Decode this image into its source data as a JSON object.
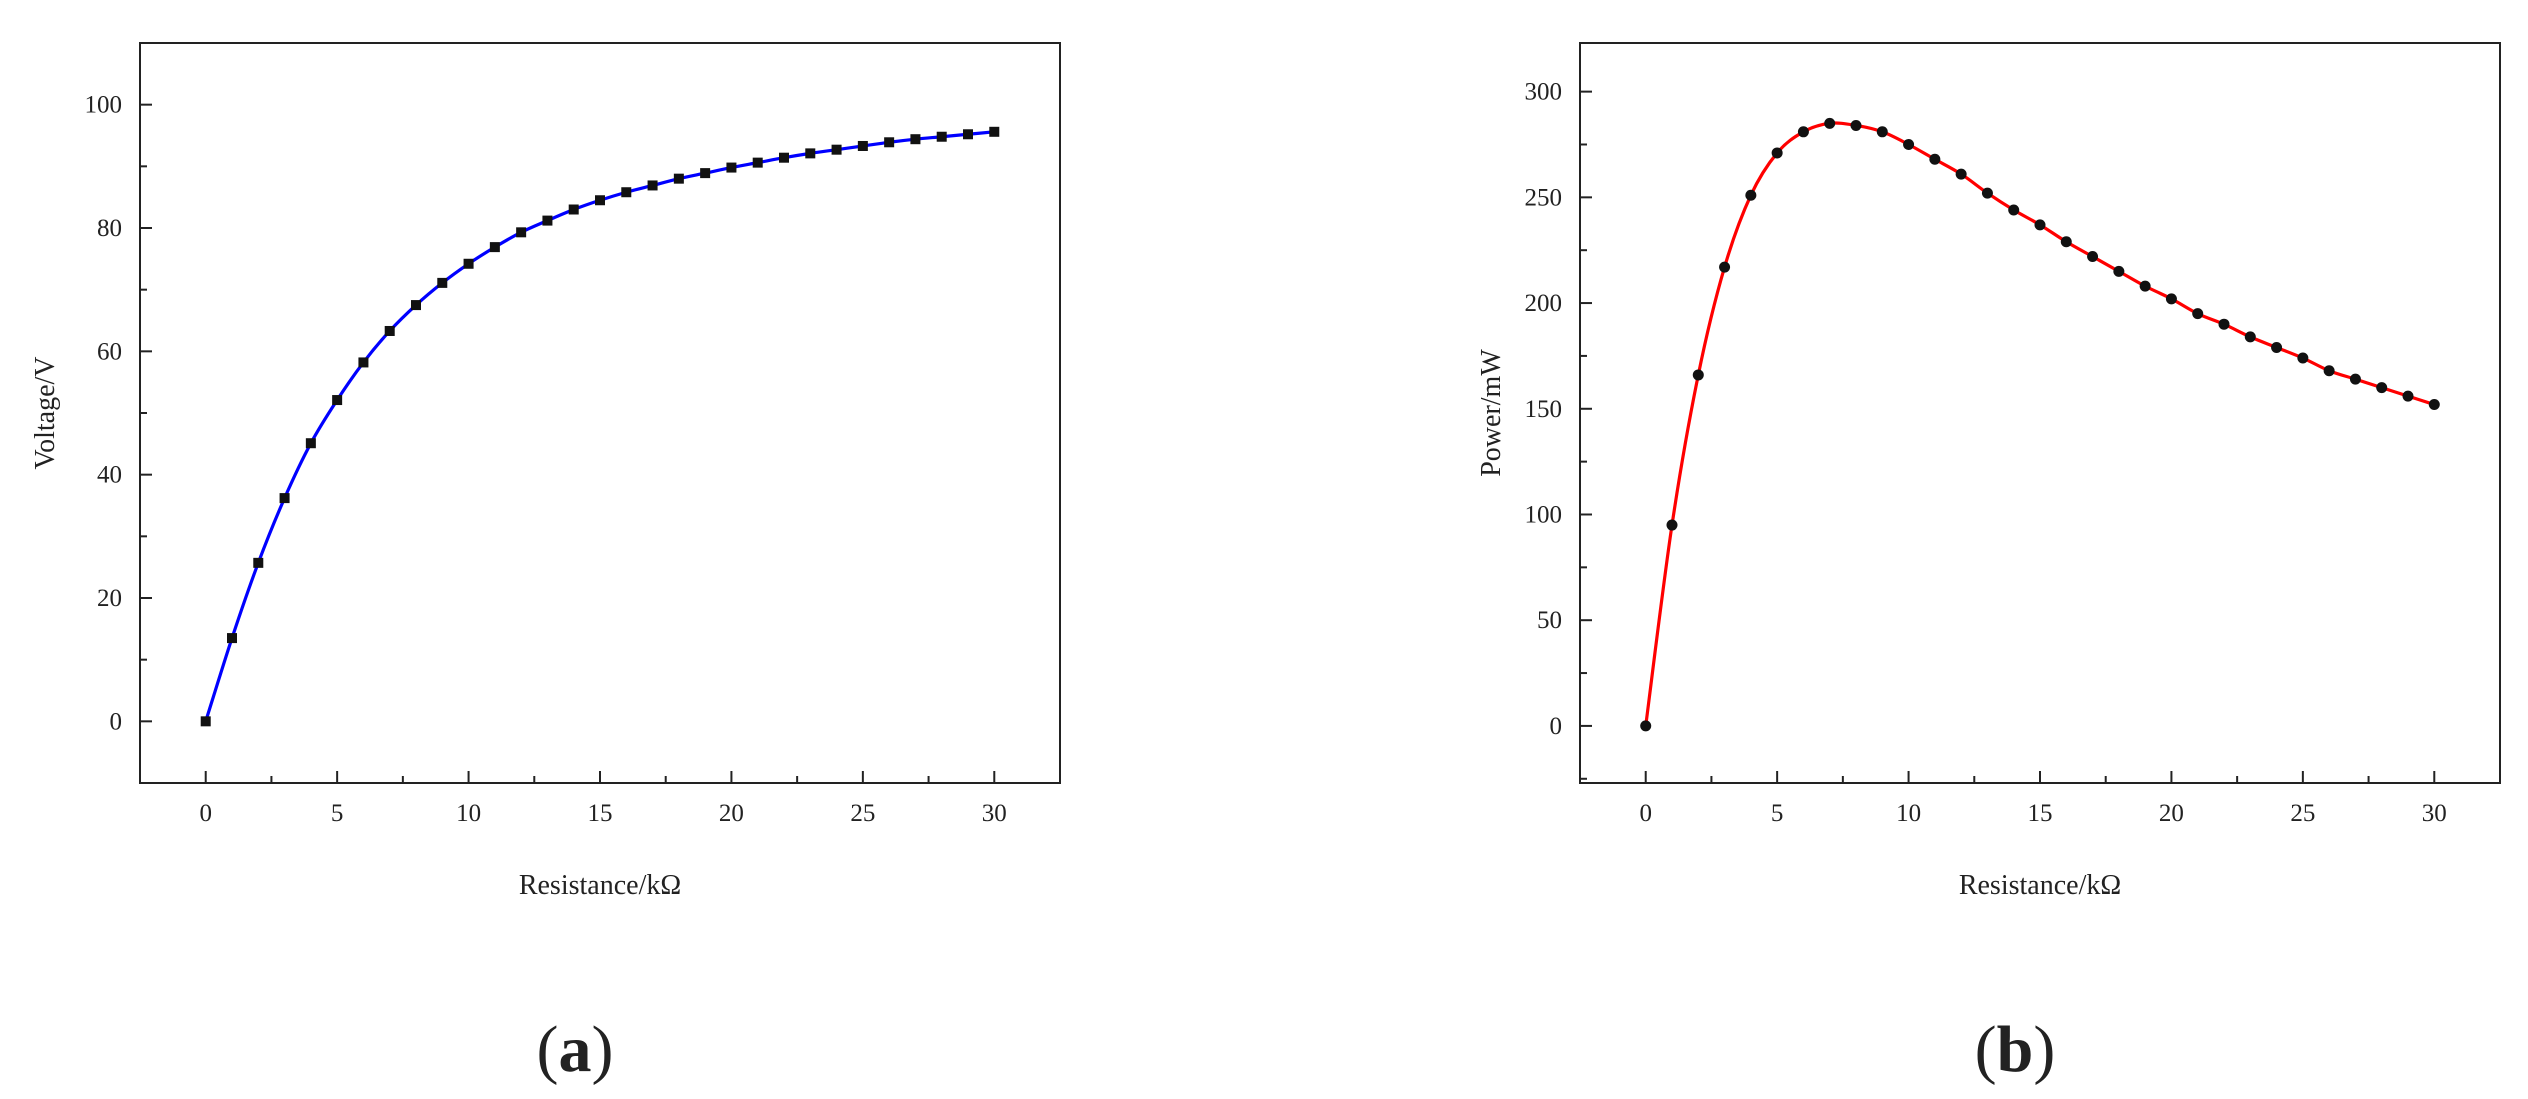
{
  "chart_data": [
    {
      "panel_label": "a",
      "type": "line",
      "xlabel": "Resistance/kΩ",
      "ylabel": "Voltage/V",
      "xlim": [
        -2.5,
        32.5
      ],
      "ylim": [
        -10,
        110
      ],
      "xticks": [
        0,
        5,
        10,
        15,
        20,
        25,
        30
      ],
      "yticks": [
        0,
        20,
        40,
        60,
        80,
        100
      ],
      "marker": "square",
      "line_color": "#0000ff",
      "marker_color": "#111111",
      "series": [
        {
          "x": [
            0,
            1,
            2,
            3,
            4,
            5,
            6,
            7,
            8,
            9,
            10,
            11,
            12,
            13,
            14,
            15,
            16,
            17,
            18,
            19,
            20,
            21,
            22,
            23,
            24,
            25,
            26,
            27,
            28,
            29,
            30
          ],
          "values": [
            0,
            13.5,
            25.7,
            36.2,
            45.1,
            52.1,
            58.2,
            63.3,
            67.5,
            71.1,
            74.2,
            76.9,
            79.3,
            81.2,
            83,
            84.5,
            85.8,
            86.9,
            88,
            88.9,
            89.8,
            90.6,
            91.4,
            92.1,
            92.7,
            93.3,
            93.9,
            94.4,
            94.8,
            95.2,
            95.6
          ]
        }
      ]
    },
    {
      "panel_label": "b",
      "type": "line",
      "xlabel": "Resistance/kΩ",
      "ylabel": "Power/mW",
      "xlim": [
        -2.5,
        32.5
      ],
      "ylim": [
        -27,
        323
      ],
      "xticks": [
        0,
        5,
        10,
        15,
        20,
        25,
        30
      ],
      "yticks": [
        0,
        50,
        100,
        150,
        200,
        250,
        300
      ],
      "marker": "circle",
      "line_color": "#ff0000",
      "marker_color": "#111111",
      "series": [
        {
          "x": [
            0,
            1,
            2,
            3,
            4,
            5,
            6,
            7,
            8,
            9,
            10,
            11,
            12,
            13,
            14,
            15,
            16,
            17,
            18,
            19,
            20,
            21,
            22,
            23,
            24,
            25,
            26,
            27,
            28,
            29,
            30
          ],
          "values": [
            0,
            95,
            166,
            217,
            251,
            271,
            281,
            285,
            284,
            281,
            275,
            268,
            261,
            252,
            244,
            237,
            229,
            222,
            215,
            208,
            202,
            195,
            190,
            184,
            179,
            174,
            168,
            164,
            160,
            156,
            152
          ]
        }
      ]
    }
  ]
}
